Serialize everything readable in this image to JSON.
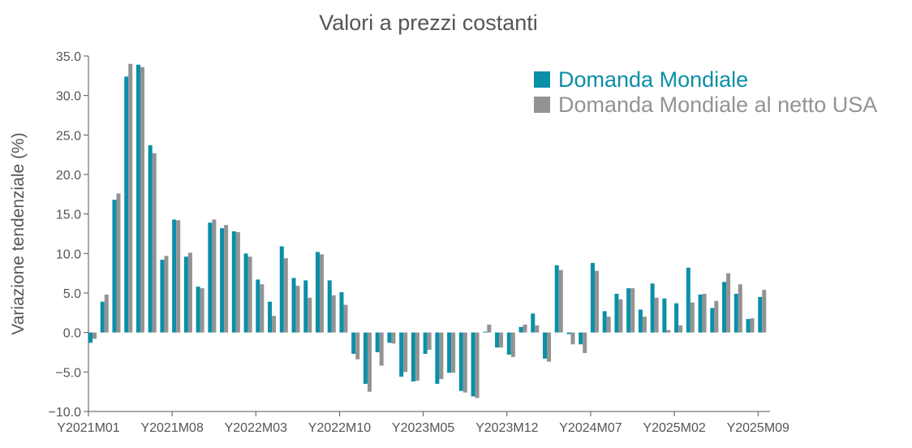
{
  "chart_data": {
    "type": "bar",
    "title": "Valori a prezzi costanti",
    "xlabel": "",
    "ylabel": "Variazione tendenziale (%)",
    "ylim": [
      -10,
      35
    ],
    "yticks": [
      "35.0",
      "30.0",
      "25.0",
      "20.0",
      "15.0",
      "10.0",
      "5.0",
      "0.0",
      "−5.0",
      "−10.0"
    ],
    "ytick_values": [
      35,
      30,
      25,
      20,
      15,
      10,
      5,
      0,
      -5,
      -10
    ],
    "xtick_labels": [
      "Y2021M01",
      "Y2021M08",
      "Y2022M03",
      "Y2022M10",
      "Y2023M05",
      "Y2023M12",
      "Y2024M07",
      "Y2025M02",
      "Y2025M09"
    ],
    "xtick_indices": [
      0,
      7,
      14,
      21,
      28,
      35,
      42,
      49,
      56
    ],
    "legend_position": "top-right",
    "grid": false,
    "periods_start": "2021-01",
    "series": [
      {
        "name": "Domanda Mondiale",
        "color": "#0a8fa8",
        "values": [
          -1.3,
          3.9,
          16.8,
          32.4,
          33.9,
          23.7,
          9.2,
          14.3,
          9.6,
          5.8,
          13.9,
          13.2,
          12.8,
          10.0,
          6.7,
          3.9,
          10.9,
          6.9,
          6.6,
          10.2,
          6.6,
          5.1,
          -2.7,
          -6.5,
          -2.5,
          -1.3,
          -5.6,
          -6.2,
          -2.7,
          -6.5,
          -5.1,
          -7.4,
          -8.1,
          0.1,
          -1.9,
          -2.8,
          0.7,
          2.4,
          -3.3,
          8.5,
          -0.2,
          -1.5,
          8.8,
          2.7,
          4.9,
          5.6,
          2.9,
          6.2,
          4.3,
          3.7,
          8.2,
          4.8,
          3.1,
          6.4,
          4.9,
          1.7,
          4.5
        ]
      },
      {
        "name": "Domanda Mondiale al netto USA",
        "color": "#939393",
        "values": [
          -0.8,
          4.8,
          17.6,
          34.0,
          33.6,
          22.7,
          9.7,
          14.2,
          10.1,
          5.6,
          14.3,
          13.6,
          12.7,
          9.6,
          6.1,
          2.1,
          9.4,
          5.9,
          4.4,
          9.9,
          4.7,
          3.5,
          -3.4,
          -7.5,
          -4.2,
          -1.4,
          -5.0,
          -6.1,
          -2.2,
          -5.9,
          -5.1,
          -7.6,
          -8.3,
          1.0,
          -1.9,
          -3.1,
          1.0,
          0.9,
          -3.7,
          7.9,
          -1.5,
          -2.6,
          7.8,
          2.0,
          4.2,
          5.6,
          2.0,
          4.4,
          0.3,
          0.9,
          3.8,
          4.9,
          4.0,
          7.5,
          6.1,
          1.8,
          5.4
        ]
      }
    ]
  }
}
